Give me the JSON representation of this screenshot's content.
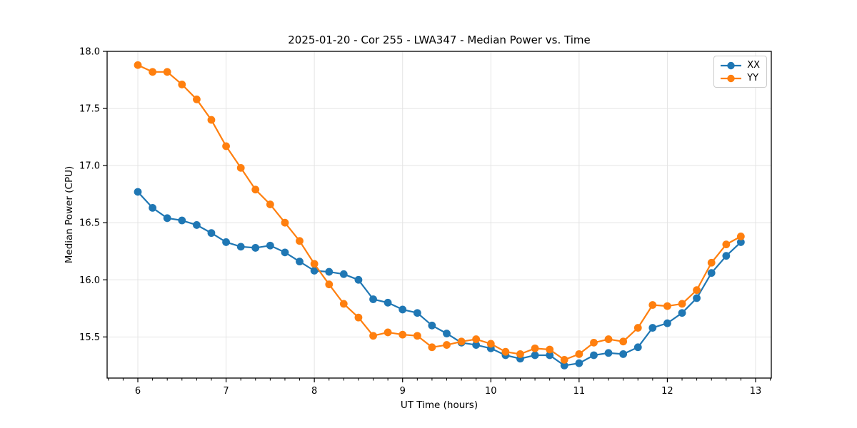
{
  "chart_data": {
    "type": "line",
    "title": "2025-01-20 - Cor 255 - LWA347 - Median Power vs. Time",
    "xlabel": "UT Time (hours)",
    "ylabel": "Median Power (CPU)",
    "x": [
      6.0,
      6.167,
      6.333,
      6.5,
      6.667,
      6.833,
      7.0,
      7.167,
      7.333,
      7.5,
      7.667,
      7.833,
      8.0,
      8.167,
      8.333,
      8.5,
      8.667,
      8.833,
      9.0,
      9.167,
      9.333,
      9.5,
      9.667,
      9.833,
      10.0,
      10.167,
      10.333,
      10.5,
      10.667,
      10.833,
      11.0,
      11.167,
      11.333,
      11.5,
      11.667,
      11.833,
      12.0,
      12.167,
      12.333,
      12.5,
      12.667,
      12.833
    ],
    "series": [
      {
        "name": "XX",
        "color": "#1f77b4",
        "values": [
          16.77,
          16.63,
          16.54,
          16.52,
          16.48,
          16.41,
          16.33,
          16.29,
          16.28,
          16.3,
          16.24,
          16.16,
          16.08,
          16.07,
          16.05,
          16.0,
          15.83,
          15.8,
          15.74,
          15.71,
          15.6,
          15.53,
          15.45,
          15.43,
          15.4,
          15.34,
          15.31,
          15.34,
          15.34,
          15.25,
          15.27,
          15.34,
          15.36,
          15.35,
          15.41,
          15.58,
          15.62,
          15.71,
          15.84,
          16.06,
          16.21,
          16.33
        ]
      },
      {
        "name": "YY",
        "color": "#ff7f0e",
        "values": [
          17.88,
          17.82,
          17.82,
          17.71,
          17.58,
          17.4,
          17.17,
          16.98,
          16.79,
          16.66,
          16.5,
          16.34,
          16.14,
          15.96,
          15.79,
          15.67,
          15.51,
          15.54,
          15.52,
          15.51,
          15.41,
          15.43,
          15.46,
          15.48,
          15.44,
          15.37,
          15.35,
          15.4,
          15.39,
          15.3,
          15.35,
          15.45,
          15.48,
          15.46,
          15.58,
          15.78,
          15.77,
          15.79,
          15.91,
          16.15,
          16.31,
          16.38
        ]
      }
    ],
    "xlim": [
      5.652,
      13.178
    ],
    "ylim": [
      15.14,
      18.0
    ],
    "xticks": [
      6,
      7,
      8,
      9,
      10,
      11,
      12,
      13
    ],
    "xtick_labels": [
      "6",
      "7",
      "8",
      "9",
      "10",
      "11",
      "12",
      "13"
    ],
    "yticks": [
      15.5,
      16.0,
      16.5,
      17.0,
      17.5,
      18.0
    ],
    "ytick_labels": [
      "15.5",
      "16.0",
      "16.5",
      "17.0",
      "17.5",
      "18.0"
    ],
    "x_minor_divisions": 6,
    "grid": true,
    "legend_position": "upper right",
    "marker": "circle"
  },
  "colors": {
    "grid": "#e4e4e4",
    "spine": "#000000",
    "tick": "#000000",
    "background": "#ffffff"
  }
}
